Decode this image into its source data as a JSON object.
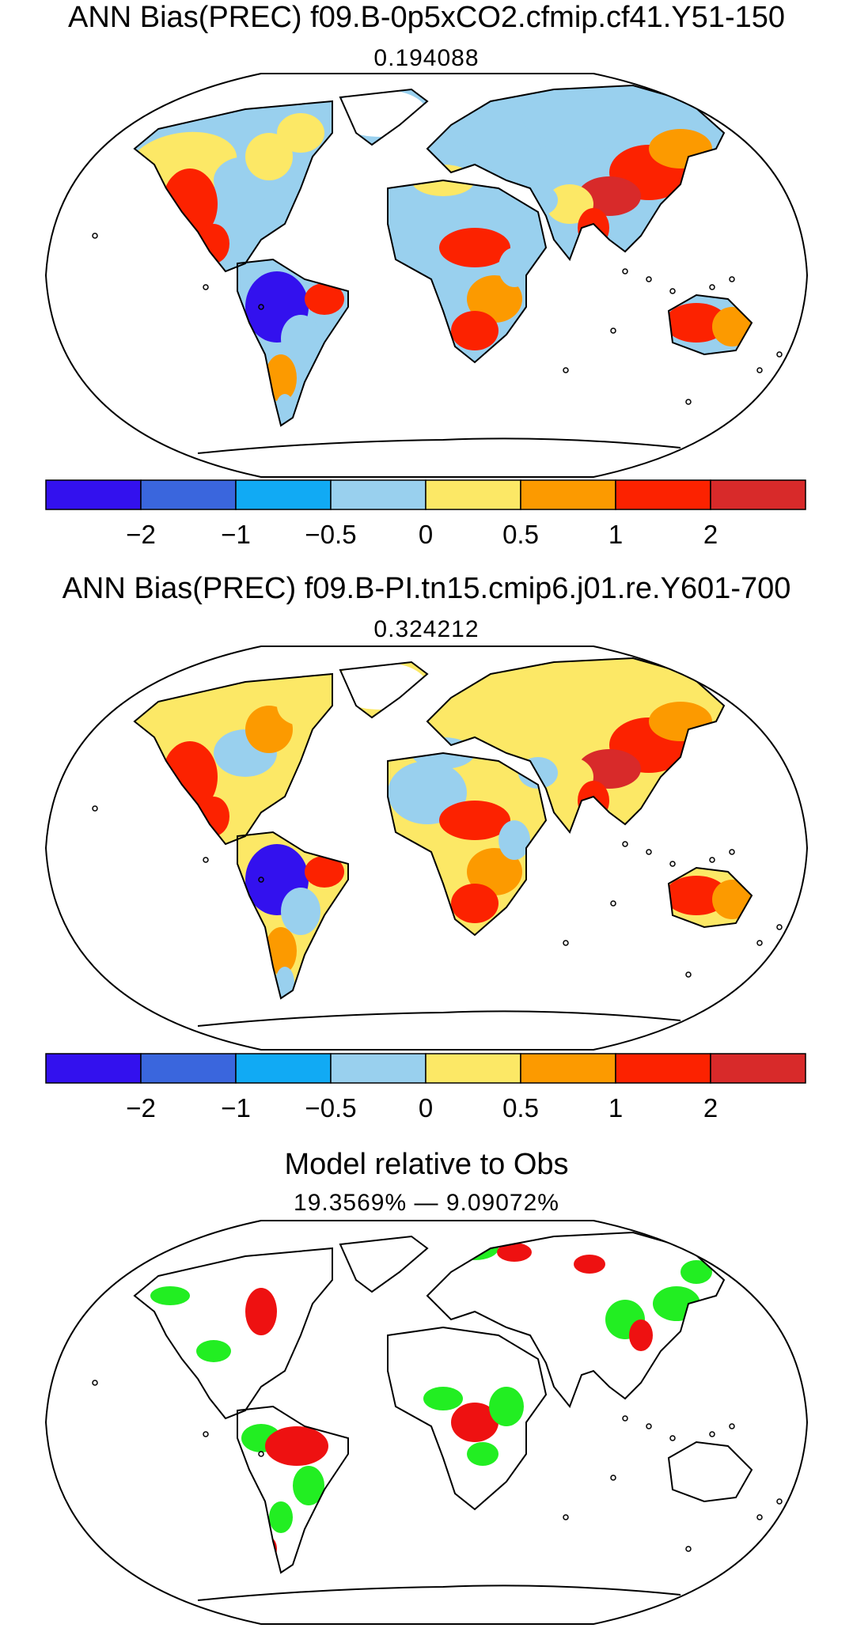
{
  "panels": [
    {
      "title": "ANN Bias(PREC) f09.B-0p5xCO2.cfmip.cf41.Y51-150",
      "value": "0.194088"
    },
    {
      "title": "ANN Bias(PREC) f09.B-PI.tn15.cmip6.j01.re.Y601-700",
      "value": "0.324212"
    },
    {
      "title": "Model relative to Obs",
      "value": "19.3569% — 9.09072%"
    }
  ],
  "colorbar": {
    "colors": [
      "#3311ee",
      "#3a66dd",
      "#11aaf4",
      "#99d0ee",
      "#fce866",
      "#fc9a00",
      "#fc2200",
      "#d82a2a"
    ],
    "tick_labels": [
      "−2",
      "−1",
      "−0.5",
      "0",
      "0.5",
      "1",
      "2"
    ]
  },
  "relative_colors": {
    "better": "#22ee22",
    "worse": "#ee1111"
  },
  "projection": "Robinson"
}
